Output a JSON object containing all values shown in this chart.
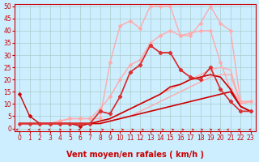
{
  "xlabel": "Vent moyen/en rafales ( km/h )",
  "bg_color": "#cceeff",
  "grid_color": "#aacccc",
  "xlim": [
    -0.5,
    23.5
  ],
  "ylim": [
    -1,
    51
  ],
  "xticks": [
    0,
    1,
    2,
    3,
    4,
    5,
    6,
    7,
    8,
    9,
    10,
    11,
    12,
    13,
    14,
    15,
    16,
    17,
    18,
    19,
    20,
    21,
    22,
    23
  ],
  "yticks": [
    0,
    5,
    10,
    15,
    20,
    25,
    30,
    35,
    40,
    45,
    50
  ],
  "series": [
    {
      "x": [
        0,
        1,
        2,
        3,
        4,
        5,
        6,
        7,
        8,
        9,
        10,
        11,
        12,
        13,
        14,
        15,
        16,
        17,
        18,
        19,
        20,
        21,
        22,
        23
      ],
      "y": [
        2,
        2,
        2,
        2,
        2,
        2,
        2,
        2,
        3,
        4,
        6,
        8,
        10,
        12,
        14,
        16,
        18,
        20,
        22,
        24,
        25,
        24,
        10,
        11
      ],
      "color": "#ffaaaa",
      "lw": 1.0,
      "marker": null
    },
    {
      "x": [
        0,
        1,
        2,
        3,
        4,
        5,
        6,
        7,
        8,
        9,
        10,
        11,
        12,
        13,
        14,
        15,
        16,
        17,
        18,
        19,
        20,
        21,
        22,
        23
      ],
      "y": [
        2,
        2,
        2,
        2,
        2,
        2,
        2,
        2,
        2,
        3,
        4,
        5,
        7,
        9,
        11,
        13,
        15,
        17,
        19,
        21,
        22,
        22,
        10,
        11
      ],
      "color": "#ffaaaa",
      "lw": 1.0,
      "marker": null
    },
    {
      "x": [
        0,
        1,
        2,
        3,
        4,
        5,
        6,
        7,
        8,
        9,
        10,
        11,
        12,
        13,
        14,
        15,
        16,
        17,
        18,
        19,
        20,
        21,
        22,
        23
      ],
      "y": [
        2,
        2,
        2,
        2,
        3,
        4,
        4,
        4,
        4,
        27,
        42,
        44,
        41,
        50,
        50,
        50,
        38,
        38,
        43,
        50,
        43,
        40,
        11,
        11
      ],
      "color": "#ffaaaa",
      "lw": 1.0,
      "marker": "D",
      "markersize": 2.5
    },
    {
      "x": [
        0,
        1,
        2,
        3,
        4,
        5,
        6,
        7,
        8,
        9,
        10,
        11,
        12,
        13,
        14,
        15,
        16,
        17,
        18,
        19,
        20,
        21,
        22,
        23
      ],
      "y": [
        2,
        2,
        2,
        2,
        3,
        4,
        4,
        4,
        8,
        13,
        20,
        26,
        28,
        35,
        38,
        40,
        38,
        39,
        40,
        40,
        27,
        16,
        11,
        11
      ],
      "color": "#ffaaaa",
      "lw": 1.0,
      "marker": "D",
      "markersize": 2.5
    },
    {
      "x": [
        0,
        1,
        2,
        3,
        4,
        5,
        6,
        7,
        8,
        9,
        10,
        11,
        12,
        13,
        14,
        15,
        16,
        17,
        18,
        19,
        20,
        21,
        22,
        23
      ],
      "y": [
        2,
        2,
        2,
        2,
        2,
        2,
        2,
        2,
        2,
        3,
        4,
        5,
        6,
        7,
        8,
        9,
        10,
        11,
        12,
        13,
        14,
        15,
        9,
        7
      ],
      "color": "#cc0000",
      "lw": 1.2,
      "marker": null
    },
    {
      "x": [
        0,
        1,
        2,
        3,
        4,
        5,
        6,
        7,
        8,
        9,
        10,
        11,
        12,
        13,
        14,
        15,
        16,
        17,
        18,
        19,
        20,
        21,
        22,
        23
      ],
      "y": [
        2,
        2,
        2,
        2,
        2,
        2,
        2,
        2,
        3,
        4,
        6,
        8,
        10,
        12,
        14,
        17,
        18,
        20,
        21,
        22,
        21,
        16,
        9,
        7
      ],
      "color": "#cc0000",
      "lw": 1.2,
      "marker": null
    },
    {
      "x": [
        0,
        1,
        2,
        3,
        4,
        5,
        6,
        7,
        8,
        9,
        10,
        11,
        12,
        13,
        14,
        15,
        16,
        17,
        18,
        19,
        20,
        21,
        22,
        23
      ],
      "y": [
        14,
        5,
        2,
        2,
        2,
        2,
        1,
        2,
        7,
        6,
        13,
        23,
        26,
        34,
        31,
        31,
        24,
        21,
        20,
        25,
        16,
        11,
        7,
        7
      ],
      "color": "#cc0000",
      "lw": 1.0,
      "marker": "D",
      "markersize": 2.5
    },
    {
      "x": [
        0,
        1,
        2,
        3,
        4,
        5,
        6,
        7,
        8,
        9,
        10,
        11,
        12,
        13,
        14,
        15,
        16,
        17,
        18,
        19,
        20,
        21,
        22,
        23
      ],
      "y": [
        2,
        2,
        2,
        2,
        2,
        2,
        2,
        2,
        7,
        6,
        13,
        23,
        26,
        34,
        31,
        31,
        24,
        21,
        20,
        25,
        16,
        11,
        7,
        7
      ],
      "color": "#dd3333",
      "lw": 1.0,
      "marker": "D",
      "markersize": 2.5
    }
  ],
  "xlabel_color": "#cc0000",
  "xlabel_fontsize": 7,
  "tick_fontsize": 5.5,
  "arrow_color": "#cc0000"
}
